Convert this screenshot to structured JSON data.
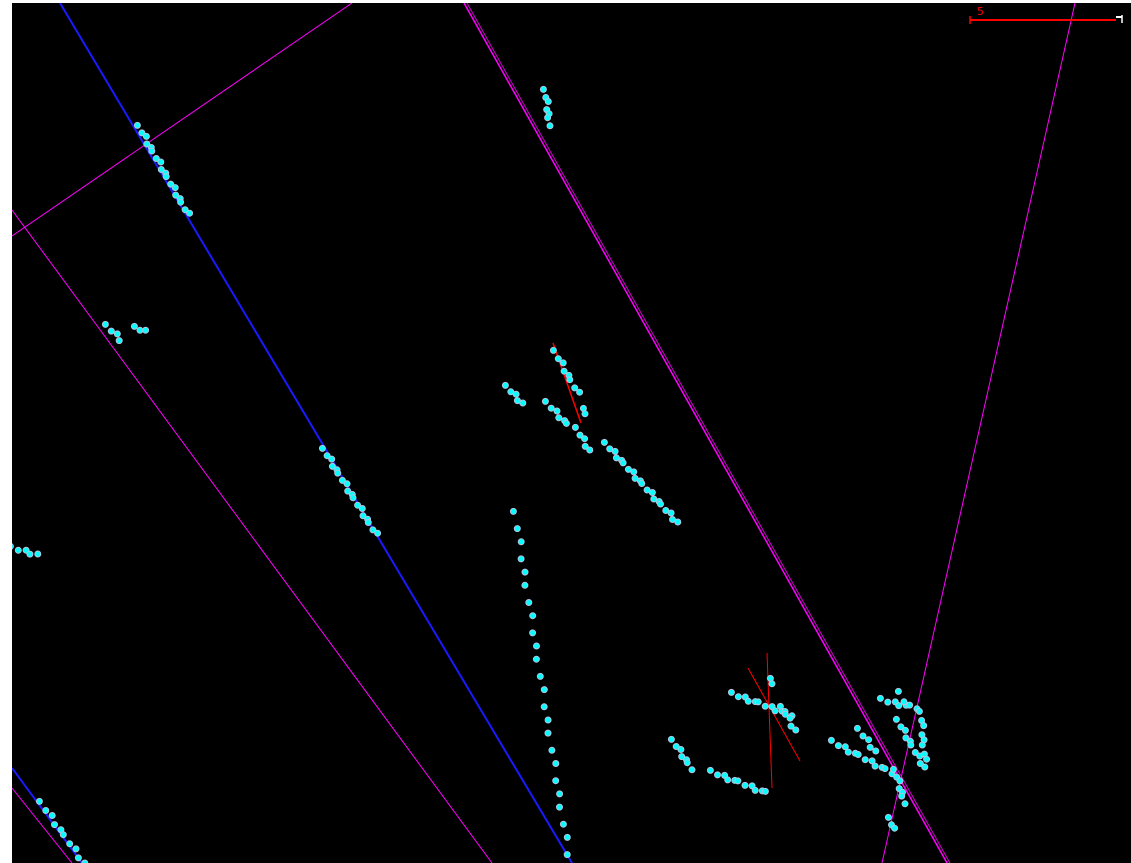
{
  "scene": {
    "background_color": "#000000",
    "line_color_magenta": "#ff00ff",
    "line_color_blue": "#1a1aff",
    "line_color_red": "#ff0000",
    "point_fill": "#00ffff",
    "point_stroke": "#b0c4de"
  },
  "scale_bar": {
    "label": "5",
    "color": "#ff0000",
    "end_color": "#ffffff"
  }
}
